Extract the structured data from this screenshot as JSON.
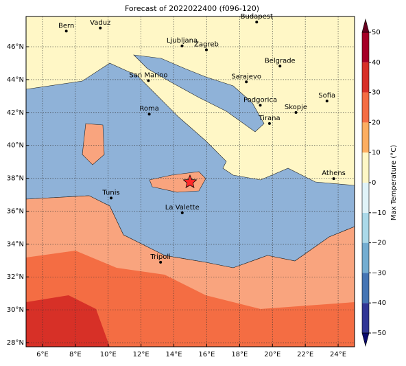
{
  "title": "Forecast of 2022022400 (f096-120)",
  "map": {
    "xlim": [
      5,
      25
    ],
    "ylim": [
      27.75,
      47.84
    ],
    "xticks": [
      {
        "value": 6,
        "label": "6°E"
      },
      {
        "value": 8,
        "label": "8°E"
      },
      {
        "value": 10,
        "label": "10°E"
      },
      {
        "value": 12,
        "label": "12°E"
      },
      {
        "value": 14,
        "label": "14°E"
      },
      {
        "value": 16,
        "label": "16°E"
      },
      {
        "value": 18,
        "label": "18°E"
      },
      {
        "value": 20,
        "label": "20°E"
      },
      {
        "value": 22,
        "label": "22°E"
      },
      {
        "value": 24,
        "label": "24°E"
      }
    ],
    "yticks": [
      {
        "value": 28,
        "label": "28°N"
      },
      {
        "value": 30,
        "label": "30°N"
      },
      {
        "value": 32,
        "label": "32°N"
      },
      {
        "value": 34,
        "label": "34°N"
      },
      {
        "value": 36,
        "label": "36°N"
      },
      {
        "value": 38,
        "label": "38°N"
      },
      {
        "value": 40,
        "label": "40°N"
      },
      {
        "value": 42,
        "label": "42°N"
      },
      {
        "value": 44,
        "label": "44°N"
      },
      {
        "value": 46,
        "label": "46°N"
      }
    ],
    "grid": true,
    "cities": [
      {
        "name": "Bern",
        "lon": 7.45,
        "lat": 46.95
      },
      {
        "name": "Vaduz",
        "lon": 9.52,
        "lat": 47.14
      },
      {
        "name": "Budapest",
        "lon": 19.04,
        "lat": 47.5
      },
      {
        "name": "Ljubljana",
        "lon": 14.5,
        "lat": 46.05
      },
      {
        "name": "Zagreb",
        "lon": 15.98,
        "lat": 45.81
      },
      {
        "name": "Belgrade",
        "lon": 20.46,
        "lat": 44.82
      },
      {
        "name": "San Marino",
        "lon": 12.45,
        "lat": 43.94
      },
      {
        "name": "Sarajevo",
        "lon": 18.41,
        "lat": 43.86
      },
      {
        "name": "Sofia",
        "lon": 23.32,
        "lat": 42.7
      },
      {
        "name": "Podgorica",
        "lon": 19.26,
        "lat": 42.44
      },
      {
        "name": "Skopje",
        "lon": 21.43,
        "lat": 42.0
      },
      {
        "name": "Roma",
        "lon": 12.5,
        "lat": 41.9
      },
      {
        "name": "Tirana",
        "lon": 19.82,
        "lat": 41.33
      },
      {
        "name": "Athens",
        "lon": 23.73,
        "lat": 37.98
      },
      {
        "name": "Tunis",
        "lon": 10.18,
        "lat": 36.8
      },
      {
        "name": "La Valette",
        "lon": 14.51,
        "lat": 35.9
      },
      {
        "name": "Tripoli",
        "lon": 13.19,
        "lat": 32.89
      }
    ],
    "marker": {
      "lon": 14.98,
      "lat": 37.77,
      "color": "#ff2a2a"
    }
  },
  "colorbar": {
    "label": "Max Temperature (°C)",
    "ticks": [
      {
        "value": -50,
        "label": "−50"
      },
      {
        "value": -40,
        "label": "−40"
      },
      {
        "value": -30,
        "label": "−30"
      },
      {
        "value": -20,
        "label": "−20"
      },
      {
        "value": -10,
        "label": "−10"
      },
      0,
      10,
      20,
      30,
      40,
      50
    ],
    "colors": [
      "#313695",
      "#4575b4",
      "#74add1",
      "#abd9e9",
      "#e0f3f8",
      "#fff7c6",
      "#fdae61",
      "#f46d43",
      "#d73027",
      "#a50026"
    ],
    "under_color": "#0a0a6e",
    "over_color": "#67001f"
  }
}
